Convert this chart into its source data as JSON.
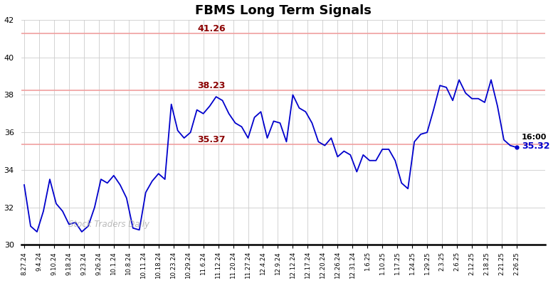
{
  "title": "FBMS Long Term Signals",
  "watermark": "Stock Traders Daily",
  "hlines": [
    41.26,
    38.23,
    35.37
  ],
  "hline_color": "#f0a0a0",
  "hline_labels_color": "#8b0000",
  "ylim": [
    30,
    42
  ],
  "yticks": [
    30,
    32,
    34,
    36,
    38,
    40,
    42
  ],
  "final_label": "16:00",
  "final_value": "35.32",
  "final_value_color": "#0000cc",
  "line_color": "#0000cc",
  "background_color": "#ffffff",
  "grid_color": "#cccccc",
  "xtick_labels": [
    "8.27.24",
    "9.4.24",
    "9.10.24",
    "9.18.24",
    "9.23.24",
    "9.26.24",
    "10.1.24",
    "10.8.24",
    "10.11.24",
    "10.18.24",
    "10.23.24",
    "10.29.24",
    "11.6.24",
    "11.12.24",
    "11.20.24",
    "11.27.24",
    "12.4.24",
    "12.9.24",
    "12.12.24",
    "12.17.24",
    "12.20.24",
    "12.26.24",
    "12.31.24",
    "1.6.25",
    "1.10.25",
    "1.17.25",
    "1.24.25",
    "1.29.25",
    "2.3.25",
    "2.6.25",
    "2.12.25",
    "2.18.25",
    "2.21.25",
    "2.26.25"
  ],
  "price_data": [
    33.2,
    31.0,
    30.7,
    31.8,
    33.5,
    32.2,
    31.8,
    31.1,
    31.2,
    30.7,
    31.0,
    32.0,
    33.5,
    33.3,
    33.7,
    33.2,
    32.5,
    30.9,
    30.8,
    32.8,
    33.4,
    33.8,
    33.5,
    37.5,
    36.1,
    35.7,
    36.0,
    37.2,
    37.0,
    37.4,
    37.9,
    37.7,
    37.0,
    36.5,
    36.3,
    35.7,
    36.8,
    37.1,
    35.7,
    36.6,
    36.5,
    35.5,
    38.0,
    37.3,
    37.1,
    36.5,
    35.5,
    35.3,
    35.7,
    34.7,
    35.0,
    34.8,
    33.9,
    34.8,
    34.5,
    34.5,
    35.1,
    35.1,
    34.5,
    33.3,
    33.0,
    35.5,
    35.9,
    36.0,
    37.2,
    38.5,
    38.4,
    37.7,
    38.8,
    38.1,
    37.8,
    37.8,
    37.6,
    38.8,
    37.4,
    35.6,
    35.3,
    35.2
  ]
}
